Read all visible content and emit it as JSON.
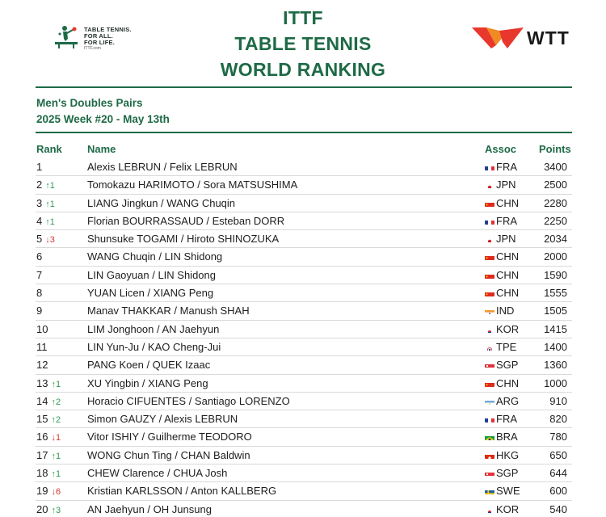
{
  "header": {
    "ittf_logo_text": [
      "TABLE TENNIS.",
      "FOR ALL.",
      "FOR LIFE."
    ],
    "ittf_logo_url": "ITTF.com",
    "title_lines": [
      "ITTF",
      "TABLE TENNIS",
      "WORLD RANKING"
    ],
    "wtt_logo_text": "WTT"
  },
  "subtitle": {
    "category": "Men's Doubles Pairs",
    "week": "2025 Week #20 - May 13th"
  },
  "columns": {
    "rank": "Rank",
    "name": "Name",
    "assoc": "Assoc",
    "points": "Points"
  },
  "colors": {
    "brand_green": "#1e6a46",
    "up_arrow": "#2f9c52",
    "down_arrow": "#d33a2e",
    "wtt_red": "#e8372c",
    "wtt_orange": "#f08a24"
  },
  "rows": [
    {
      "rank": "1",
      "move": "",
      "dir": "",
      "name": "Alexis LEBRUN / Felix LEBRUN",
      "flag": "fr",
      "assoc": "FRA",
      "points": "3400"
    },
    {
      "rank": "2",
      "move": "↑1",
      "dir": "up",
      "name": "Tomokazu HARIMOTO / Sora MATSUSHIMA",
      "flag": "jp",
      "assoc": "JPN",
      "points": "2500"
    },
    {
      "rank": "3",
      "move": "↑1",
      "dir": "up",
      "name": "LIANG Jingkun / WANG Chuqin",
      "flag": "cn",
      "assoc": "CHN",
      "points": "2280"
    },
    {
      "rank": "4",
      "move": "↑1",
      "dir": "up",
      "name": "Florian BOURRASSAUD / Esteban DORR",
      "flag": "fr",
      "assoc": "FRA",
      "points": "2250"
    },
    {
      "rank": "5",
      "move": "↓3",
      "dir": "down",
      "name": "Shunsuke TOGAMI / Hiroto SHINOZUKA",
      "flag": "jp",
      "assoc": "JPN",
      "points": "2034"
    },
    {
      "rank": "6",
      "move": "",
      "dir": "",
      "name": "WANG Chuqin / LIN Shidong",
      "flag": "cn",
      "assoc": "CHN",
      "points": "2000"
    },
    {
      "rank": "7",
      "move": "",
      "dir": "",
      "name": "LIN Gaoyuan / LIN Shidong",
      "flag": "cn",
      "assoc": "CHN",
      "points": "1590"
    },
    {
      "rank": "8",
      "move": "",
      "dir": "",
      "name": "YUAN Licen / XIANG Peng",
      "flag": "cn",
      "assoc": "CHN",
      "points": "1555"
    },
    {
      "rank": "9",
      "move": "",
      "dir": "",
      "name": "Manav THAKKAR / Manush SHAH",
      "flag": "in",
      "assoc": "IND",
      "points": "1505"
    },
    {
      "rank": "10",
      "move": "",
      "dir": "",
      "name": "LIM Jonghoon / AN Jaehyun",
      "flag": "kr",
      "assoc": "KOR",
      "points": "1415"
    },
    {
      "rank": "11",
      "move": "",
      "dir": "",
      "name": "LIN Yun-Ju / KAO Cheng-Jui",
      "flag": "tpe",
      "assoc": "TPE",
      "points": "1400"
    },
    {
      "rank": "12",
      "move": "",
      "dir": "",
      "name": "PANG Koen / QUEK Izaac",
      "flag": "sg",
      "assoc": "SGP",
      "points": "1360"
    },
    {
      "rank": "13",
      "move": "↑1",
      "dir": "up",
      "name": "XU Yingbin / XIANG Peng",
      "flag": "cn",
      "assoc": "CHN",
      "points": "1000"
    },
    {
      "rank": "14",
      "move": "↑2",
      "dir": "up",
      "name": "Horacio CIFUENTES / Santiago LORENZO",
      "flag": "ar",
      "assoc": "ARG",
      "points": "910"
    },
    {
      "rank": "15",
      "move": "↑2",
      "dir": "up",
      "name": "Simon GAUZY / Alexis LEBRUN",
      "flag": "fr",
      "assoc": "FRA",
      "points": "820"
    },
    {
      "rank": "16",
      "move": "↓1",
      "dir": "down",
      "name": "Vitor ISHIY / Guilherme TEODORO",
      "flag": "br",
      "assoc": "BRA",
      "points": "780"
    },
    {
      "rank": "17",
      "move": "↑1",
      "dir": "up",
      "name": "WONG Chun Ting / CHAN Baldwin",
      "flag": "hk",
      "assoc": "HKG",
      "points": "650"
    },
    {
      "rank": "18",
      "move": "↑1",
      "dir": "up",
      "name": "CHEW Clarence / CHUA Josh",
      "flag": "sg",
      "assoc": "SGP",
      "points": "644"
    },
    {
      "rank": "19",
      "move": "↓6",
      "dir": "down",
      "name": "Kristian KARLSSON / Anton KALLBERG",
      "flag": "se",
      "assoc": "SWE",
      "points": "600"
    },
    {
      "rank": "20",
      "move": "↑3",
      "dir": "up",
      "name": "AN Jaehyun / OH Junsung",
      "flag": "kr",
      "assoc": "KOR",
      "points": "540"
    }
  ]
}
